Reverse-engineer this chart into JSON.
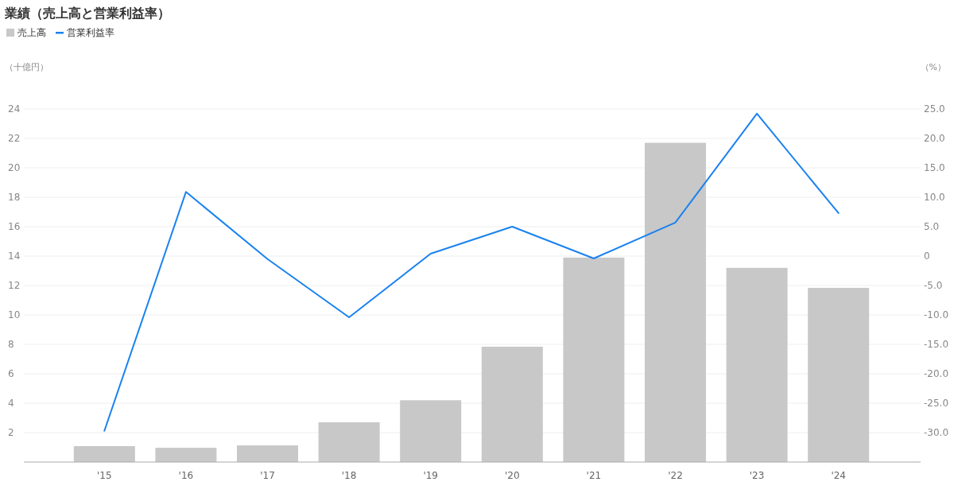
{
  "chart_data": {
    "type": "bar",
    "title": "業績（売上高と営業利益率）",
    "ylabel": "（十億円）",
    "y2label": "（%）",
    "categories": [
      "'15",
      "'16",
      "'17",
      "'18",
      "'19",
      "'20",
      "'21",
      "'22",
      "'23",
      "'24"
    ],
    "series": [
      {
        "name": "売上高",
        "color": "#c8c8c8",
        "values": [
          1.08,
          0.97,
          1.13,
          2.7,
          4.2,
          7.84,
          13.9,
          21.7,
          13.2,
          11.84
        ]
      },
      {
        "name": "営業利益率",
        "type": "line",
        "axis": "y2",
        "color": "#1a82f0",
        "values": [
          -29.7,
          10.9,
          -0.5,
          -10.4,
          0.4,
          5.0,
          -0.4,
          5.7,
          24.2,
          7.3
        ]
      }
    ],
    "ylim": [
      0,
      24
    ],
    "yticks": [
      2,
      4,
      6,
      8,
      10,
      12,
      14,
      16,
      18,
      20,
      22,
      24
    ],
    "y2lim": [
      -35,
      25
    ],
    "y2ticks": [
      {
        "value": -30,
        "label": "-30.0"
      },
      {
        "value": -25,
        "label": "-25.0"
      },
      {
        "value": -20,
        "label": "-20.0"
      },
      {
        "value": -15,
        "label": "-15.0"
      },
      {
        "value": -10,
        "label": "-10.0"
      },
      {
        "value": -5,
        "label": "-5.0"
      },
      {
        "value": 0,
        "label": "0"
      },
      {
        "value": 5,
        "label": "5.0"
      },
      {
        "value": 10,
        "label": "10.0"
      },
      {
        "value": 15,
        "label": "15.0"
      },
      {
        "value": 20,
        "label": "20.0"
      },
      {
        "value": 25,
        "label": "25.0"
      }
    ],
    "grid": "y",
    "legend": "top left"
  }
}
